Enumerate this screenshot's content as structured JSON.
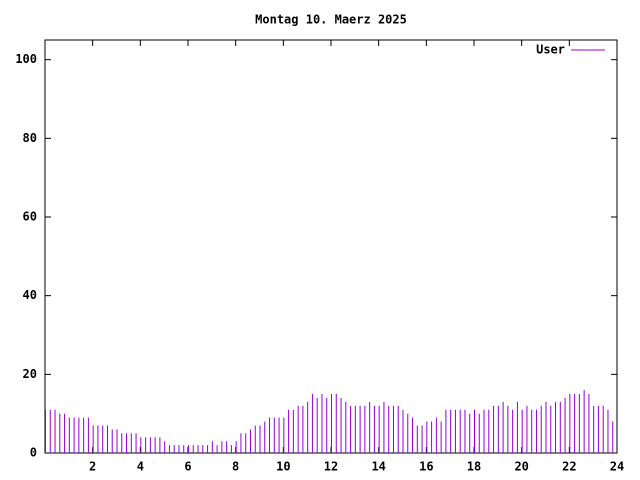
{
  "chart_data": {
    "type": "impulse",
    "title": "Montag 10. Maerz 2025",
    "x": [
      0,
      0.2,
      0.4,
      0.6,
      0.8,
      1,
      1.2,
      1.4,
      1.6,
      1.8,
      2,
      2.2,
      2.4,
      2.6,
      2.8,
      3,
      3.2,
      3.4,
      3.6,
      3.8,
      4,
      4.2,
      4.4,
      4.6,
      4.8,
      5,
      5.2,
      5.4,
      5.6,
      5.8,
      6,
      6.2,
      6.4,
      6.6,
      6.8,
      7,
      7.2,
      7.4,
      7.6,
      7.8,
      8,
      8.2,
      8.4,
      8.6,
      8.8,
      9,
      9.2,
      9.4,
      9.6,
      9.8,
      10,
      10.2,
      10.4,
      10.6,
      10.8,
      11,
      11.2,
      11.4,
      11.6,
      11.8,
      12,
      12.2,
      12.4,
      12.6,
      12.8,
      13,
      13.2,
      13.4,
      13.6,
      13.8,
      14,
      14.2,
      14.4,
      14.6,
      14.8,
      15,
      15.2,
      15.4,
      15.6,
      15.8,
      16,
      16.2,
      16.4,
      16.6,
      16.8,
      17,
      17.2,
      17.4,
      17.6,
      17.8,
      18,
      18.2,
      18.4,
      18.6,
      18.8,
      19,
      19.2,
      19.4,
      19.6,
      19.8,
      20,
      20.2,
      20.4,
      20.6,
      20.8,
      21,
      21.2,
      21.4,
      21.6,
      21.8,
      22,
      22.2,
      22.4,
      22.6,
      22.8,
      23,
      23.2,
      23.4,
      23.6,
      23.8
    ],
    "series": [
      {
        "name": "User",
        "color": "#9400d3",
        "values": [
          11,
          11,
          11,
          10,
          10,
          9,
          9,
          9,
          9,
          9,
          7,
          7,
          7,
          7,
          6,
          6,
          5,
          5,
          5,
          5,
          4,
          4,
          4,
          4,
          4,
          3,
          2,
          2,
          2,
          2,
          2,
          2,
          2,
          2,
          2,
          3,
          2,
          3,
          3,
          2,
          3,
          5,
          5,
          6,
          7,
          7,
          8,
          9,
          9,
          9,
          9,
          11,
          11,
          12,
          12,
          13,
          15,
          14,
          15,
          14,
          15,
          15,
          14,
          13,
          12,
          12,
          12,
          12,
          13,
          12,
          12,
          13,
          12,
          12,
          12,
          11,
          10,
          9,
          7,
          7,
          8,
          8,
          9,
          8,
          11,
          11,
          11,
          11,
          11,
          10,
          11,
          10,
          11,
          11,
          12,
          12,
          13,
          12,
          11,
          13,
          11,
          12,
          11,
          11,
          12,
          13,
          12,
          13,
          13,
          14,
          15,
          15,
          15,
          16,
          15,
          12,
          12,
          12,
          11,
          8
        ]
      }
    ],
    "xlim": [
      0,
      24
    ],
    "xticks": [
      2,
      4,
      6,
      8,
      10,
      12,
      14,
      16,
      18,
      20,
      22,
      24
    ],
    "ylim": [
      0,
      105
    ],
    "yticks": [
      0,
      20,
      40,
      60,
      80,
      100
    ],
    "legend": "top-right"
  }
}
